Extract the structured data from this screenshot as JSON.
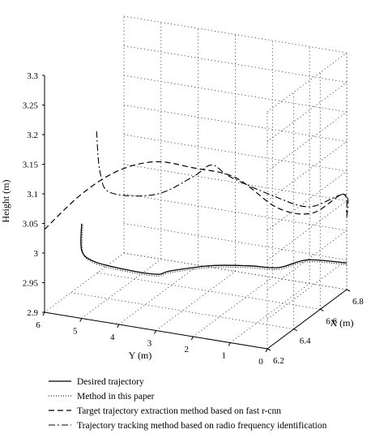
{
  "chart_data": {
    "type": "line",
    "projection": "3d",
    "title": "",
    "zlabel": "Height (m)",
    "xlabel": "X (m)",
    "ylabel": "Y (m)",
    "zlim": [
      2.9,
      3.3
    ],
    "xlim": [
      6.2,
      6.8
    ],
    "ylim": [
      0,
      6
    ],
    "z_ticks": [
      "2.9",
      "2.95",
      "3",
      "3.05",
      "3.1",
      "3.15",
      "3.2",
      "3.25",
      "3.3"
    ],
    "x_ticks": [
      "6.2",
      "6.4",
      "6.6",
      "6.8"
    ],
    "y_ticks": [
      "6",
      "5",
      "4",
      "3",
      "2",
      "1",
      "0"
    ],
    "grid": true,
    "legend_position": "bottom",
    "series": [
      {
        "name": "Desired trajectory",
        "style": "solid",
        "points": [
          {
            "x": 6.2,
            "y": 5.0,
            "z": 3.06
          },
          {
            "x": 6.2,
            "y": 5.0,
            "z": 3.015
          },
          {
            "x": 6.2,
            "y": 4.7,
            "z": 3.0
          },
          {
            "x": 6.2,
            "y": 4.0,
            "z": 2.995
          },
          {
            "x": 6.2,
            "y": 3.0,
            "z": 2.995
          },
          {
            "x": 6.2,
            "y": 2.6,
            "z": 3.005
          },
          {
            "x": 6.2,
            "y": 1.5,
            "z": 3.025
          },
          {
            "x": 6.2,
            "y": 0.5,
            "z": 3.035
          },
          {
            "x": 6.3,
            "y": 0.05,
            "z": 3.02
          },
          {
            "x": 6.5,
            "y": 0.0,
            "z": 3.0
          },
          {
            "x": 6.8,
            "y": 0.0,
            "z": 2.945
          }
        ]
      },
      {
        "name": "Method in this paper",
        "style": "dotted",
        "points": [
          {
            "x": 6.2,
            "y": 4.97,
            "z": 3.058
          },
          {
            "x": 6.2,
            "y": 4.97,
            "z": 3.012
          },
          {
            "x": 6.2,
            "y": 4.67,
            "z": 2.997
          },
          {
            "x": 6.2,
            "y": 4.0,
            "z": 2.992
          },
          {
            "x": 6.2,
            "y": 3.0,
            "z": 2.992
          },
          {
            "x": 6.2,
            "y": 2.6,
            "z": 3.002
          },
          {
            "x": 6.2,
            "y": 1.5,
            "z": 3.022
          },
          {
            "x": 6.2,
            "y": 0.5,
            "z": 3.032
          },
          {
            "x": 6.3,
            "y": 0.05,
            "z": 3.017
          },
          {
            "x": 6.5,
            "y": 0.0,
            "z": 2.997
          },
          {
            "x": 6.8,
            "y": 0.0,
            "z": 2.942
          }
        ]
      },
      {
        "name": "Target trajectory extraction method based on fast r-cnn",
        "style": "dashed",
        "points": [
          {
            "x": 6.2,
            "y": 6.0,
            "z": 3.04
          },
          {
            "x": 6.2,
            "y": 5.0,
            "z": 3.11
          },
          {
            "x": 6.2,
            "y": 4.0,
            "z": 3.16
          },
          {
            "x": 6.2,
            "y": 3.0,
            "z": 3.185
          },
          {
            "x": 6.2,
            "y": 2.0,
            "z": 3.185
          },
          {
            "x": 6.35,
            "y": 1.4,
            "z": 3.15
          },
          {
            "x": 6.5,
            "y": 0.8,
            "z": 3.08
          },
          {
            "x": 6.65,
            "y": 0.4,
            "z": 3.05
          },
          {
            "x": 6.8,
            "y": 0.1,
            "z": 3.06
          },
          {
            "x": 6.8,
            "y": 0.0,
            "z": 3.03
          }
        ]
      },
      {
        "name": "Trajectory tracking method based on radio frequency identification",
        "style": "dashdot",
        "points": [
          {
            "x": 6.2,
            "y": 4.6,
            "z": 3.22
          },
          {
            "x": 6.2,
            "y": 4.5,
            "z": 3.15
          },
          {
            "x": 6.2,
            "y": 4.2,
            "z": 3.12
          },
          {
            "x": 6.2,
            "y": 3.0,
            "z": 3.13
          },
          {
            "x": 6.2,
            "y": 2.0,
            "z": 3.17
          },
          {
            "x": 6.2,
            "y": 1.5,
            "z": 3.195
          },
          {
            "x": 6.2,
            "y": 1.0,
            "z": 3.18
          },
          {
            "x": 6.4,
            "y": 0.6,
            "z": 3.12
          },
          {
            "x": 6.6,
            "y": 0.3,
            "z": 3.07
          },
          {
            "x": 6.8,
            "y": 0.05,
            "z": 3.06
          },
          {
            "x": 6.8,
            "y": 0.0,
            "z": 3.02
          }
        ]
      }
    ]
  }
}
